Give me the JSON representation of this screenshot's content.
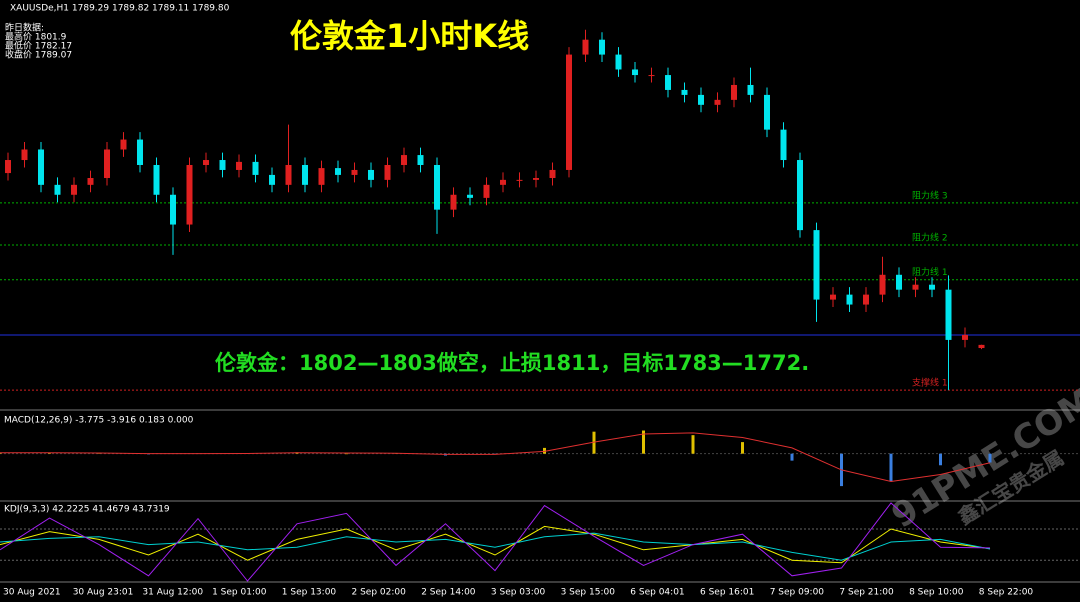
{
  "chart_data": [
    {
      "type": "candlestick",
      "title": "伦敦金1小时K线",
      "header": "XAUUSDe,H1  1789.29 1789.82 1789.11 1789.80",
      "info": [
        "昨日数据:",
        "最高价 1801.9",
        "最低价 1782.17",
        "收盘价 1789.07"
      ],
      "annotation": "伦敦金：1802—1803做空，止损1811，目标1783—1772.",
      "time_labels": [
        "30 Aug 2021",
        "30 Aug 23:01",
        "31 Aug 12:00",
        "1 Sep 01:00",
        "1 Sep 13:00",
        "2 Sep 02:00",
        "2 Sep 14:00",
        "3 Sep 03:00",
        "3 Sep 15:00",
        "6 Sep 04:01",
        "6 Sep 16:01",
        "7 Sep 09:00",
        "7 Sep 21:00",
        "8 Sep 10:00",
        "8 Sep 22:00"
      ],
      "up_color": "#e02020",
      "down_color": "#00e5ee",
      "ylim": [
        1779.3,
        1845.4
      ],
      "open": [
        1817.5,
        1819.6,
        1821.3,
        1815.6,
        1814.0,
        1815.6,
        1816.7,
        1821.3,
        1822.9,
        1818.8,
        1814.0,
        1809.2,
        1818.8,
        1819.6,
        1818.0,
        1819.3,
        1817.2,
        1815.6,
        1818.8,
        1815.6,
        1818.3,
        1817.2,
        1818.0,
        1816.4,
        1818.8,
        1820.4,
        1818.8,
        1811.6,
        1814.0,
        1813.5,
        1815.6,
        1816.4,
        1816.4,
        1816.7,
        1818.0,
        1836.6,
        1839.0,
        1836.6,
        1834.2,
        1833.3,
        1833.3,
        1830.9,
        1830.1,
        1828.5,
        1829.3,
        1831.7,
        1830.1,
        1824.5,
        1819.6,
        1808.3,
        1797.1,
        1797.9,
        1796.3,
        1797.9,
        1801.1,
        1798.7,
        1799.5,
        1798.7,
        1790.6,
        1789.29
      ],
      "high": [
        1820.8,
        1822.5,
        1822.5,
        1816.8,
        1816.8,
        1817.9,
        1822.5,
        1824.1,
        1824.1,
        1820.0,
        1815.2,
        1820.0,
        1820.8,
        1820.8,
        1820.5,
        1820.5,
        1818.4,
        1825.3,
        1820.0,
        1819.5,
        1819.5,
        1819.2,
        1819.2,
        1820.0,
        1821.6,
        1821.6,
        1820.0,
        1815.2,
        1815.2,
        1816.8,
        1817.6,
        1817.6,
        1817.9,
        1819.2,
        1837.8,
        1840.6,
        1840.2,
        1837.8,
        1835.4,
        1834.5,
        1834.5,
        1832.1,
        1831.3,
        1830.5,
        1832.9,
        1834.5,
        1831.3,
        1825.7,
        1820.8,
        1809.5,
        1799.1,
        1799.1,
        1799.1,
        1804.0,
        1802.3,
        1800.7,
        1800.7,
        1801.0,
        1792.6,
        1789.82
      ],
      "low": [
        1816.3,
        1818.4,
        1814.4,
        1812.8,
        1812.8,
        1814.4,
        1815.5,
        1820.1,
        1817.6,
        1812.8,
        1804.3,
        1808.0,
        1817.6,
        1816.8,
        1816.8,
        1816.0,
        1814.4,
        1814.4,
        1814.4,
        1814.4,
        1816.0,
        1816.0,
        1815.2,
        1815.2,
        1817.6,
        1817.6,
        1807.7,
        1810.4,
        1812.3,
        1812.3,
        1814.4,
        1815.2,
        1815.2,
        1815.5,
        1816.8,
        1835.4,
        1835.4,
        1833.0,
        1832.1,
        1832.1,
        1829.7,
        1828.9,
        1827.3,
        1827.3,
        1828.1,
        1828.9,
        1823.3,
        1818.4,
        1807.1,
        1793.5,
        1795.9,
        1795.1,
        1795.1,
        1796.7,
        1797.5,
        1797.5,
        1797.5,
        1782.5,
        1789.4,
        1789.11
      ],
      "close": [
        1819.6,
        1821.3,
        1815.6,
        1814.0,
        1815.6,
        1816.7,
        1821.3,
        1822.9,
        1818.8,
        1814.0,
        1809.2,
        1818.8,
        1819.6,
        1818.0,
        1819.3,
        1817.2,
        1815.6,
        1818.8,
        1815.6,
        1818.3,
        1817.2,
        1818.0,
        1816.4,
        1818.8,
        1820.4,
        1818.8,
        1811.6,
        1814.0,
        1813.5,
        1815.6,
        1816.4,
        1816.4,
        1816.7,
        1818.0,
        1836.6,
        1839.0,
        1836.6,
        1834.2,
        1833.3,
        1833.3,
        1830.9,
        1830.1,
        1828.5,
        1829.3,
        1831.7,
        1830.1,
        1824.5,
        1819.6,
        1808.3,
        1797.1,
        1797.9,
        1796.3,
        1797.9,
        1801.1,
        1798.7,
        1799.5,
        1798.7,
        1790.6,
        1791.4,
        1789.8
      ],
      "levels": [
        {
          "name": "阻力线 3",
          "value": 1812.7,
          "color": "#00b000"
        },
        {
          "name": "阻力线 2",
          "value": 1805.9,
          "color": "#00b000"
        },
        {
          "name": "阻力线 1",
          "value": 1800.3,
          "color": "#00b000"
        },
        {
          "value": 1791.4,
          "color": "#2030e0"
        },
        {
          "name": "支撑线 1",
          "value": 1782.5,
          "color": "#d02020"
        }
      ]
    },
    {
      "type": "macd",
      "header": "MACD(12,26,9) -3.775 -3.916 0.183 0.000",
      "ylim": [
        -20,
        18
      ],
      "series": [
        {
          "color": "#3a7fe0",
          "values": [
            0.5,
            0.3,
            0.2,
            -0.3,
            0.1,
            0.2,
            0.6,
            0,
            0.2,
            -0.8,
            -0.2,
            2.5,
            9.5,
            10,
            8,
            5,
            -3,
            -14,
            -12,
            -5,
            -3.8
          ]
        },
        {
          "color": "#e03030",
          "values": [
            0.4,
            0.4,
            0.3,
            0,
            0,
            0.1,
            0.4,
            0.3,
            0.2,
            -0.3,
            -0.3,
            1,
            5,
            8.5,
            9,
            7,
            2.5,
            -7,
            -12,
            -9,
            -3.9
          ]
        }
      ]
    },
    {
      "type": "kdj",
      "header": "KDJ(9,3,3) 42.2225 41.4679 43.7319",
      "ylim": [
        -20,
        130
      ],
      "levels": [
        20,
        80
      ],
      "series": [
        {
          "color": "#f0f000",
          "values": [
            50,
            75,
            60,
            30,
            70,
            20,
            60,
            80,
            40,
            70,
            30,
            85,
            70,
            40,
            50,
            60,
            20,
            15,
            80,
            55,
            42.2
          ]
        },
        {
          "color": "#00d0d0",
          "values": [
            55,
            62,
            65,
            50,
            55,
            40,
            45,
            65,
            55,
            60,
            45,
            65,
            72,
            55,
            50,
            55,
            35,
            20,
            55,
            60,
            41.5
          ]
        },
        {
          "color": "#a020f0",
          "values": [
            40,
            101,
            50,
            -10,
            100,
            -20,
            90,
            110,
            10,
            90,
            0,
            125,
            66,
            10,
            50,
            70,
            -10,
            5,
            130,
            45,
            43.7
          ]
        }
      ]
    }
  ],
  "watermark": {
    "site": "91PME.COM",
    "brand": "鑫汇宝贵金属"
  }
}
